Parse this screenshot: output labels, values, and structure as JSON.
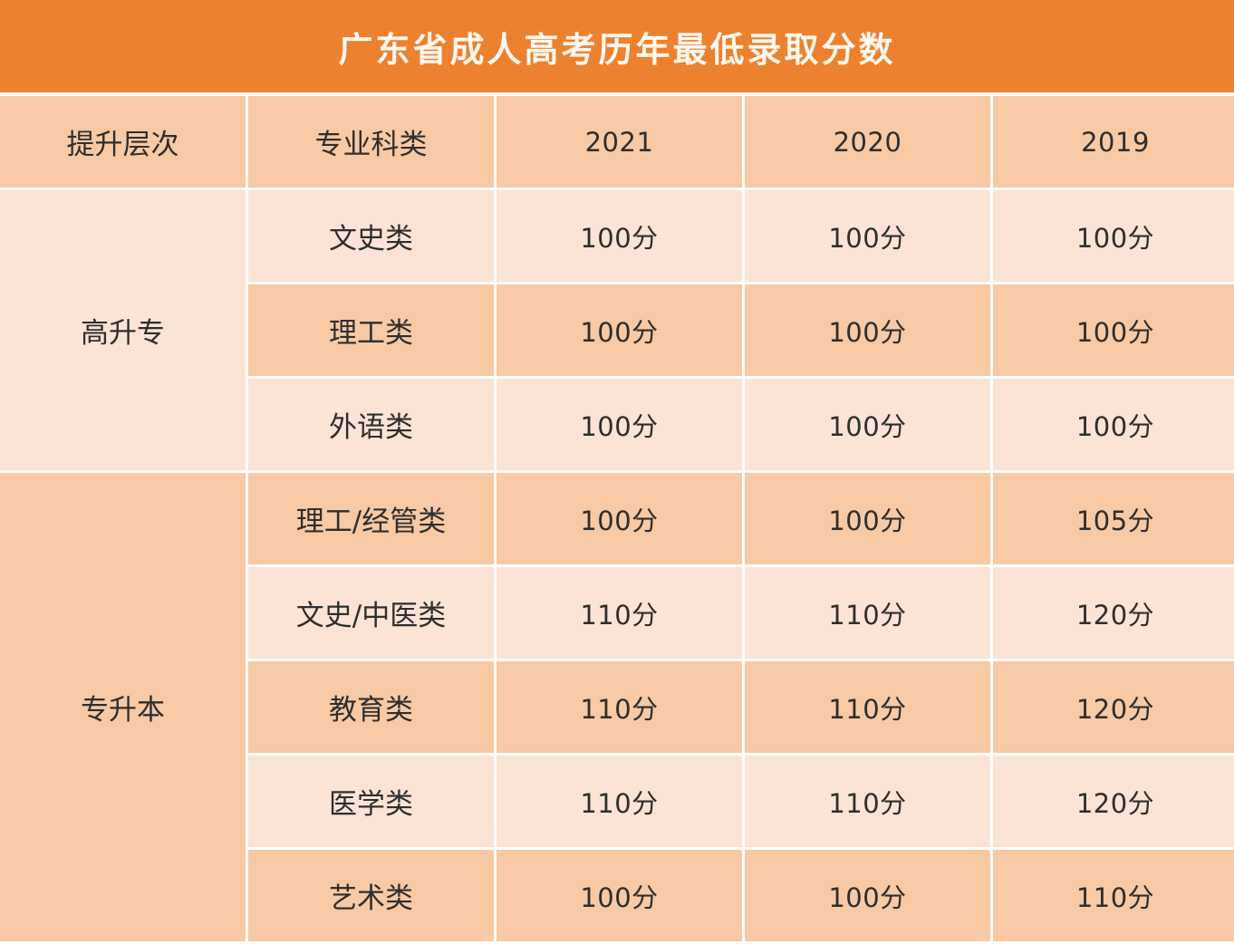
{
  "title": "广东省成人高考历年最低录取分数",
  "headers": [
    "提升层次",
    "专业科类",
    "2021",
    "2020",
    "2019"
  ],
  "groups": [
    {
      "level": "高升专",
      "rows": [
        {
          "category": "文史类",
          "scores": [
            "100分",
            "100分",
            "100分"
          ]
        },
        {
          "category": "理工类",
          "scores": [
            "100分",
            "100分",
            "100分"
          ]
        },
        {
          "category": "外语类",
          "scores": [
            "100分",
            "100分",
            "100分"
          ]
        }
      ]
    },
    {
      "level": "专升本",
      "rows": [
        {
          "category": "理工/经管类",
          "scores": [
            "100分",
            "100分",
            "105分"
          ]
        },
        {
          "category": "文史/中医类",
          "scores": [
            "110分",
            "110分",
            "120分"
          ]
        },
        {
          "category": "教育类",
          "scores": [
            "110分",
            "110分",
            "120分"
          ]
        },
        {
          "category": "医学类",
          "scores": [
            "110分",
            "110分",
            "120分"
          ]
        },
        {
          "category": "艺术类",
          "scores": [
            "100分",
            "100分",
            "110分"
          ]
        }
      ]
    }
  ],
  "colors": {
    "title_bg": "#ec8130",
    "cell_dark": "#f7c9a5",
    "cell_light": "#fbe4d5",
    "title_text": "#fff8f0",
    "body_text": "#2e2e2e"
  }
}
